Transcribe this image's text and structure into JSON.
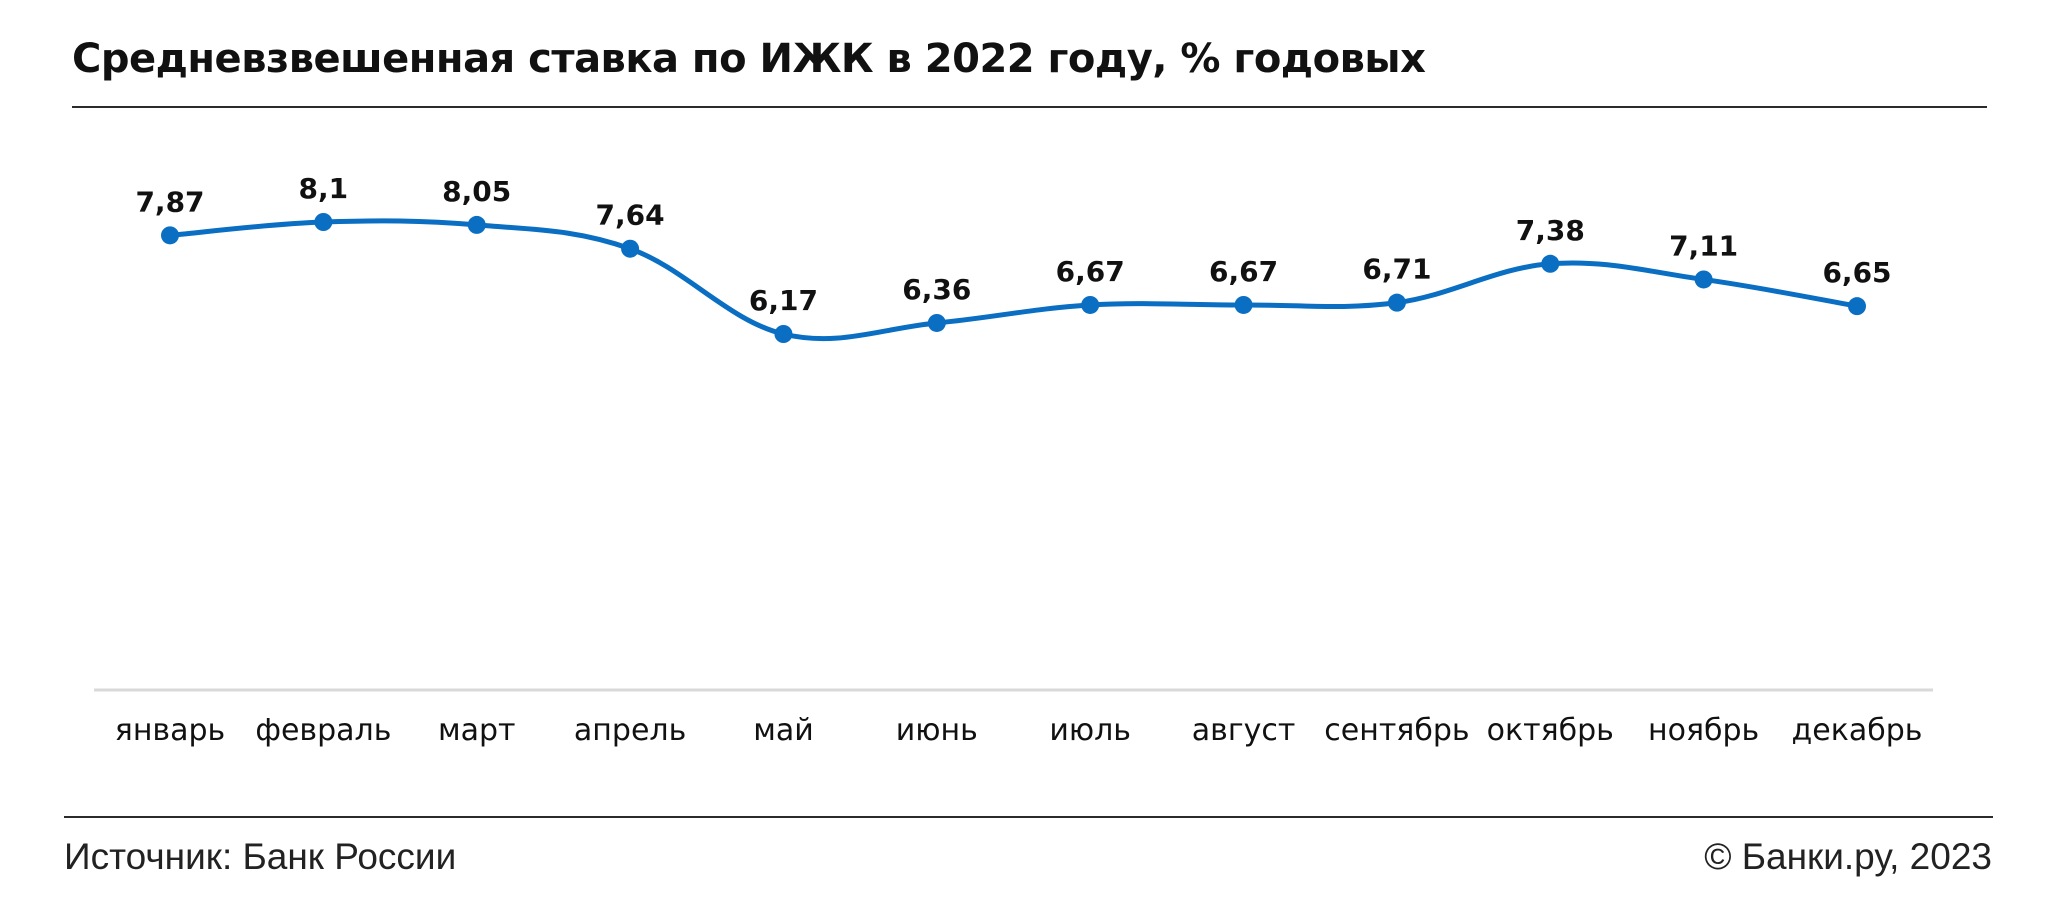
{
  "header": {
    "title": "Средневзвешенная ставка по ИЖК в 2022 году, % годовых"
  },
  "footer": {
    "source": "Источник: Банк России",
    "copyright": "© Банки.ру, 2023"
  },
  "colors": {
    "line": "#0A6EC2",
    "axis": "#D9D9D9",
    "rules": "#2B2B2B"
  },
  "chart_data": {
    "type": "line",
    "title": "Средневзвешенная ставка по ИЖК в 2022 году, % годовых",
    "categories": [
      "январь",
      "февраль",
      "март",
      "апрель",
      "май",
      "июнь",
      "июль",
      "август",
      "сентябрь",
      "октябрь",
      "ноябрь",
      "декабрь"
    ],
    "series": [
      {
        "values": [
          7.87,
          8.1,
          8.05,
          7.64,
          6.17,
          6.36,
          6.67,
          6.67,
          6.71,
          7.38,
          7.11,
          6.65
        ],
        "labels": [
          "7,87",
          "8,1",
          "8,05",
          "7,64",
          "6,17",
          "6,36",
          "6,67",
          "6,67",
          "6,71",
          "7,38",
          "7,11",
          "6,65"
        ]
      }
    ],
    "xlabel": "",
    "ylabel": "",
    "grid": false,
    "smooth": true,
    "data_labels": true
  }
}
